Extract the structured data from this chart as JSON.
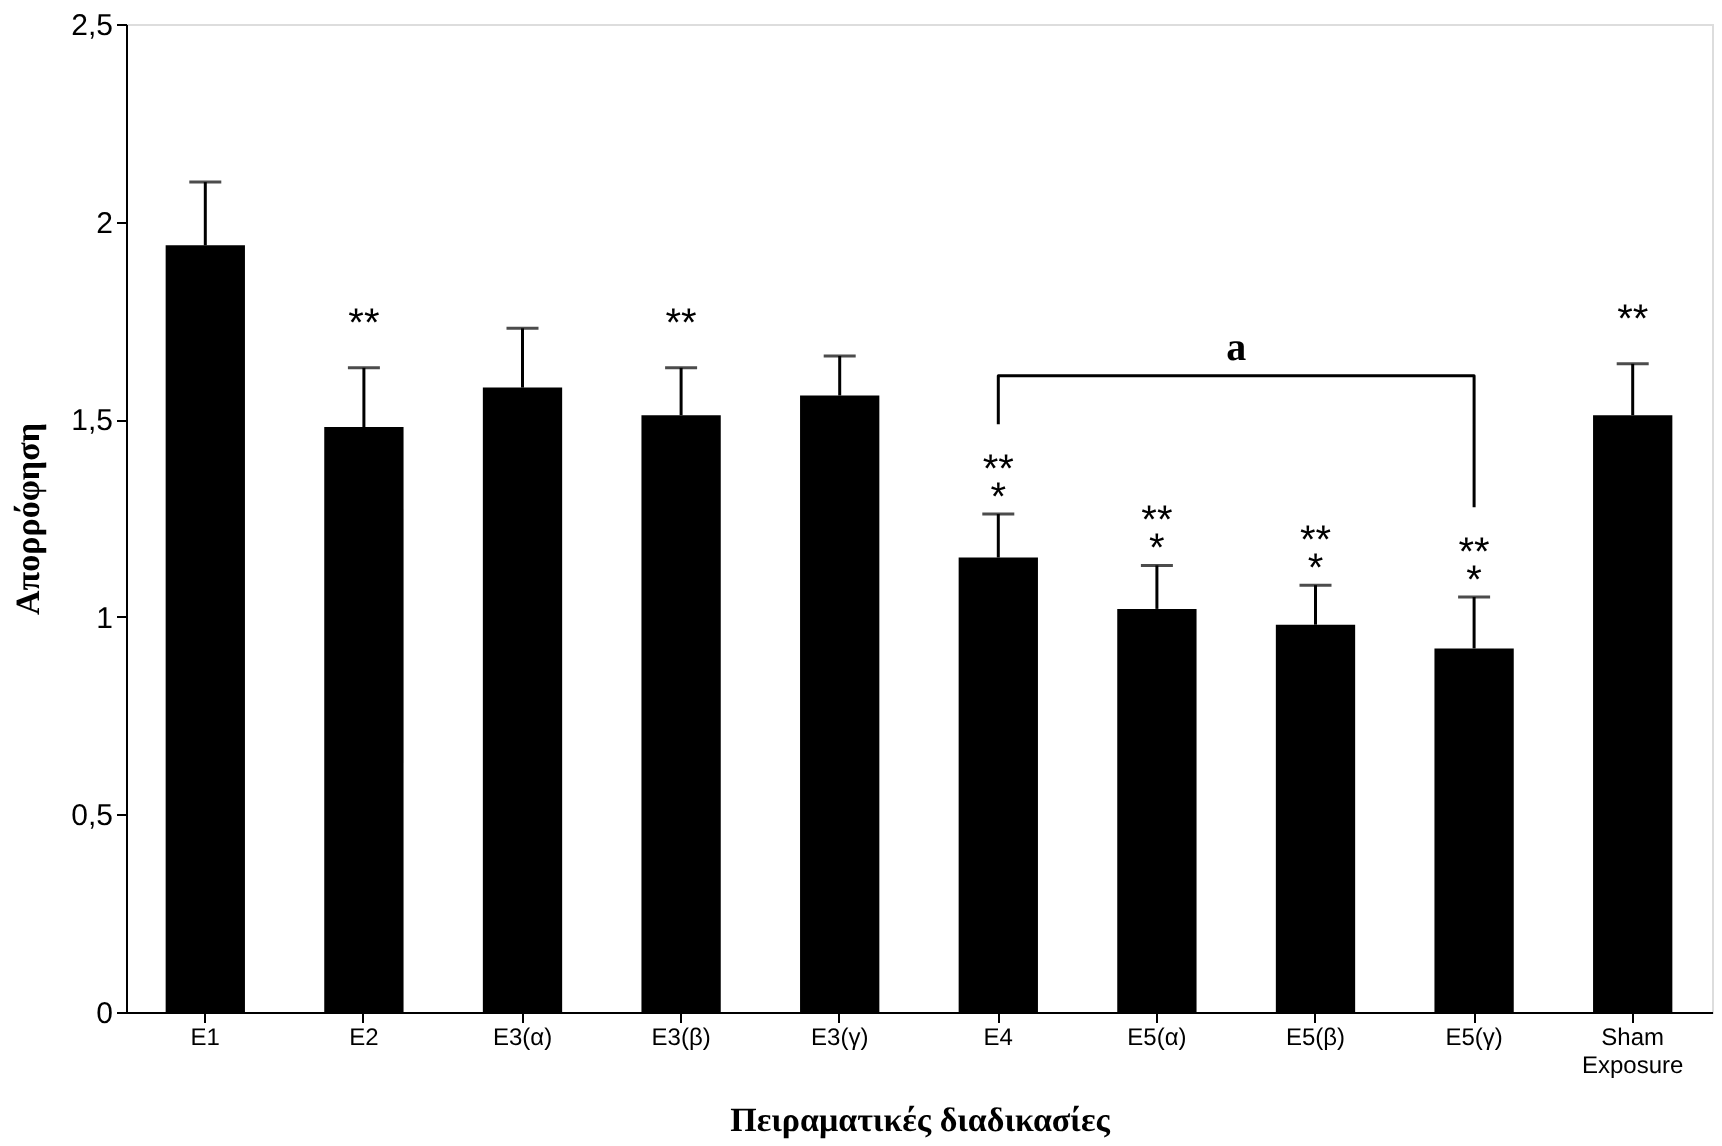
{
  "chart_data": {
    "type": "bar",
    "xlabel": "Πειραματικές διαδικασίες",
    "ylabel": "Απορρόφηση",
    "categories": [
      "E1",
      "E2",
      "E3(α)",
      "E3(β)",
      "E3(γ)",
      "E4",
      "E5(α)",
      "E5(β)",
      "E5(γ)",
      "Sham Exposure"
    ],
    "values": [
      1.94,
      1.48,
      1.58,
      1.51,
      1.56,
      1.15,
      1.02,
      0.98,
      0.92,
      1.51
    ],
    "errors": [
      [
        1.94,
        2.1
      ],
      [
        1.48,
        1.63
      ],
      [
        1.58,
        1.73
      ],
      [
        1.51,
        1.63
      ],
      [
        1.56,
        1.66
      ],
      [
        1.15,
        1.26
      ],
      [
        1.02,
        1.13
      ],
      [
        0.98,
        1.08
      ],
      [
        0.92,
        1.05
      ],
      [
        1.51,
        1.64
      ]
    ],
    "color": "#000000",
    "ylim": [
      0,
      2.5
    ],
    "yticks": [
      0,
      {
        "value": 0.5,
        "label": "0,5"
      },
      1,
      {
        "value": 1.5,
        "label": "1,5"
      },
      2,
      {
        "value": 2.5,
        "label": "2,5"
      }
    ],
    "grid": false,
    "annotations": [
      {
        "text": "**",
        "x": "E2",
        "y": 1.63
      },
      {
        "text": "**",
        "x": "E3(β)",
        "y": 1.63
      },
      {
        "text": "**\n*",
        "x": "E4",
        "y": 1.26
      },
      {
        "text": "**\n*",
        "x": "E5(α)",
        "y": 1.13
      },
      {
        "text": "**\n*",
        "x": "E5(β)",
        "y": 1.08
      },
      {
        "text": "**\n*",
        "x": "E5(γ)",
        "y": 1.05
      },
      {
        "text": "**",
        "x": "Sham Exposure",
        "y": 1.64
      },
      "a"
    ]
  }
}
